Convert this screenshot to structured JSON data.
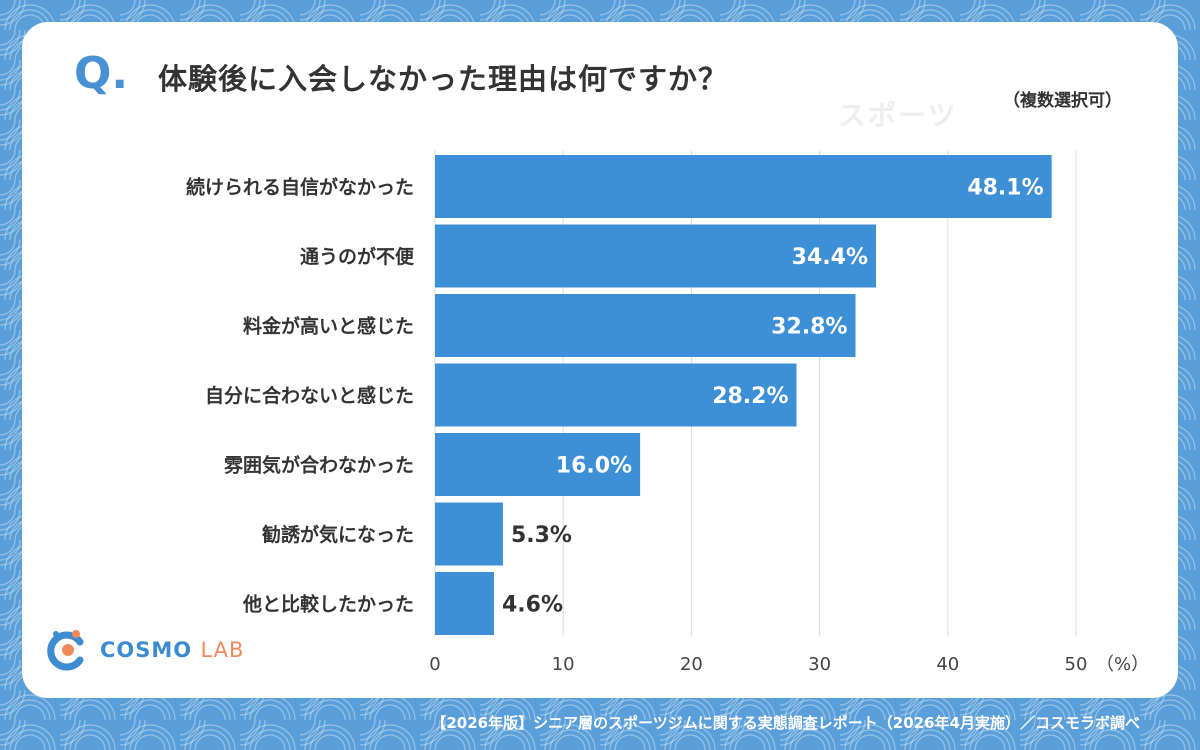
{
  "header": {
    "q_mark": "Q.",
    "title": "体験後に入会しなかった理由は何ですか？",
    "note": "（複数選択可）",
    "watermark": "スポーツ"
  },
  "chart_data": {
    "type": "bar",
    "orientation": "horizontal",
    "categories": [
      "続けられる自信がなかった",
      "通うのが不便",
      "料金が高いと感じた",
      "自分に合わないと感じた",
      "雰囲気が合わなかった",
      "勧誘が気になった",
      "他と比較したかった"
    ],
    "values": [
      48.1,
      34.4,
      32.8,
      28.2,
      16.0,
      5.3,
      4.6
    ],
    "value_labels": [
      "48.1%",
      "34.4%",
      "32.8%",
      "28.2%",
      "16.0%",
      "5.3%",
      "4.6%"
    ],
    "x_ticks": [
      "0",
      "10",
      "20",
      "30",
      "40",
      "50"
    ],
    "x_unit": "（%）",
    "xlim": [
      0,
      50
    ],
    "grid": true,
    "bar_color": "#3d8fd6"
  },
  "logo": {
    "name_main": "COSMO",
    "name_sub": "LAB"
  },
  "footer": {
    "source": "【2026年版】シニア層のスポーツジムに関する実態調査レポート（2026年4月実施）／コスモラボ調べ"
  }
}
